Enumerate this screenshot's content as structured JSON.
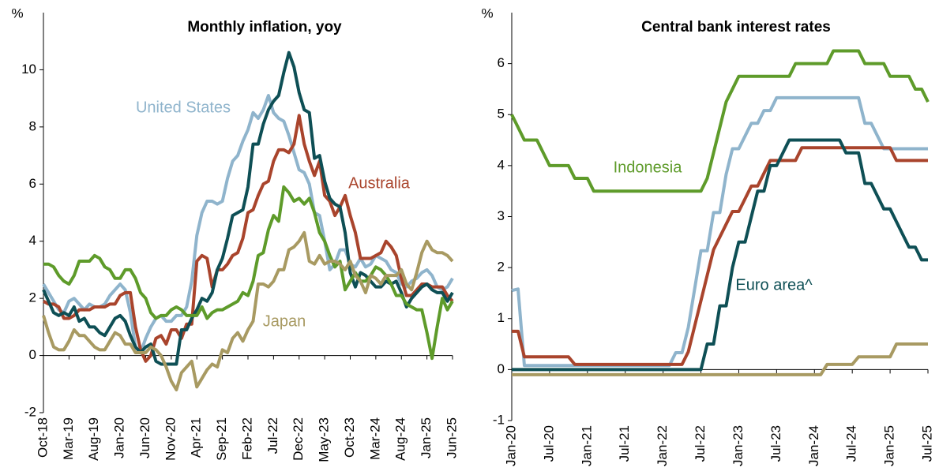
{
  "chart_data": [
    {
      "type": "line",
      "title": "Monthly inflation, yoy",
      "ylabel": "%",
      "categories": [
        "Oct-18",
        null,
        null,
        null,
        null,
        "Mar-19",
        null,
        null,
        null,
        null,
        "Aug-19",
        null,
        null,
        null,
        null,
        "Jan-20",
        null,
        null,
        null,
        null,
        "Jun-20",
        null,
        null,
        null,
        null,
        "Nov-20",
        null,
        null,
        null,
        null,
        "Apr-21",
        null,
        null,
        null,
        null,
        "Sep-21",
        null,
        null,
        null,
        null,
        "Feb-22",
        null,
        null,
        null,
        null,
        "Jul-22",
        null,
        null,
        null,
        null,
        "Dec-22",
        null,
        null,
        null,
        null,
        "May-23",
        null,
        null,
        null,
        null,
        "Oct-23",
        null,
        null,
        null,
        null,
        "Mar-24",
        null,
        null,
        null,
        null,
        "Aug-24",
        null,
        null,
        null,
        null,
        "Jan-25",
        null,
        null,
        null,
        null,
        "Jun-25"
      ],
      "ylim": [
        -2,
        12
      ],
      "yticks": [
        -2,
        0,
        2,
        4,
        6,
        8,
        10
      ],
      "series": [
        {
          "name": "United States",
          "color": "#8fb4cc",
          "values": [
            2.5,
            2.2,
            1.9,
            1.6,
            1.5,
            1.9,
            2.0,
            1.8,
            1.6,
            1.8,
            1.7,
            1.7,
            1.8,
            2.1,
            2.3,
            2.5,
            2.3,
            1.5,
            0.3,
            0.1,
            0.6,
            1.0,
            1.3,
            1.4,
            1.2,
            1.2,
            1.4,
            1.4,
            1.7,
            2.6,
            4.2,
            5.0,
            5.4,
            5.4,
            5.3,
            5.4,
            6.2,
            6.8,
            7.0,
            7.5,
            7.9,
            8.5,
            8.3,
            8.6,
            9.1,
            8.5,
            8.3,
            8.2,
            7.7,
            7.1,
            6.5,
            6.4,
            6.0,
            5.0,
            4.9,
            4.0,
            3.0,
            3.2,
            3.7,
            3.7,
            3.2,
            3.1,
            3.4,
            3.1,
            3.2,
            3.5,
            3.4,
            3.3,
            3.0,
            2.9,
            2.5,
            2.4,
            2.6,
            2.7,
            2.9,
            3.0,
            2.8,
            2.4,
            2.3,
            2.4,
            2.7
          ]
        },
        {
          "name": "Australia",
          "color": "#a9442c",
          "values": [
            1.9,
            1.8,
            1.8,
            1.7,
            1.3,
            1.3,
            1.4,
            1.6,
            1.6,
            1.6,
            1.7,
            1.7,
            1.7,
            1.8,
            1.8,
            2.1,
            2.2,
            2.2,
            1.0,
            0.2,
            -0.2,
            0.0,
            0.6,
            0.7,
            0.4,
            0.9,
            0.9,
            0.6,
            1.1,
            1.1,
            3.3,
            3.5,
            3.4,
            2.4,
            3.0,
            3.0,
            3.2,
            3.5,
            3.6,
            4.1,
            5.0,
            5.1,
            5.6,
            6.0,
            6.1,
            6.8,
            7.2,
            7.2,
            7.1,
            7.4,
            8.4,
            7.4,
            6.8,
            6.3,
            6.8,
            5.6,
            5.4,
            4.9,
            5.2,
            5.6,
            4.9,
            4.3,
            3.4,
            3.4,
            3.4,
            3.5,
            3.6,
            4.0,
            3.8,
            3.5,
            2.7,
            2.1,
            2.1,
            2.3,
            2.5,
            2.5,
            2.4,
            2.4,
            2.4,
            2.1,
            1.9
          ]
        },
        {
          "color": "#0e4f55",
          "values": [
            2.3,
            1.9,
            1.5,
            1.4,
            1.5,
            1.4,
            1.7,
            1.2,
            1.3,
            1.0,
            1.0,
            0.8,
            0.7,
            1.0,
            1.3,
            1.4,
            1.2,
            0.7,
            0.3,
            0.1,
            0.3,
            0.4,
            -0.2,
            -0.3,
            -0.3,
            -0.3,
            -0.3,
            0.9,
            0.9,
            1.3,
            1.6,
            2.0,
            1.9,
            2.2,
            3.0,
            3.4,
            4.1,
            4.9,
            5.0,
            5.1,
            5.9,
            7.4,
            7.4,
            8.1,
            8.6,
            8.9,
            9.1,
            9.9,
            10.6,
            10.1,
            9.2,
            8.6,
            8.5,
            6.9,
            7.0,
            6.1,
            5.5,
            5.3,
            5.2,
            4.3,
            2.9,
            2.4,
            2.9,
            2.8,
            2.6,
            2.4,
            2.4,
            2.6,
            2.5,
            2.6,
            2.2,
            1.7,
            2.0,
            2.2,
            2.4,
            2.5,
            2.3,
            2.2,
            2.2,
            1.9,
            2.2
          ]
        },
        {
          "color": "#5e9b2a",
          "values": [
            3.2,
            3.2,
            3.1,
            2.8,
            2.6,
            2.5,
            2.8,
            3.3,
            3.3,
            3.3,
            3.5,
            3.4,
            3.1,
            3.0,
            2.7,
            2.7,
            3.0,
            3.0,
            2.7,
            2.2,
            2.0,
            1.5,
            1.3,
            1.4,
            1.4,
            1.6,
            1.7,
            1.6,
            1.4,
            1.4,
            1.4,
            1.7,
            1.3,
            1.5,
            1.6,
            1.6,
            1.7,
            1.8,
            1.9,
            2.2,
            2.1,
            2.6,
            3.5,
            3.6,
            4.4,
            4.9,
            4.7,
            5.9,
            5.7,
            5.4,
            5.5,
            5.3,
            5.5,
            5.0,
            4.3,
            4.0,
            3.5,
            3.1,
            3.3,
            2.3,
            2.6,
            2.9,
            2.6,
            2.6,
            2.8,
            3.1,
            3.0,
            2.8,
            2.5,
            2.1,
            2.1,
            1.8,
            1.7,
            1.6,
            1.6,
            0.8,
            -0.1,
            1.0,
            2.0,
            1.6,
            1.9
          ]
        },
        {
          "name": "Japan",
          "color": "#a89a62",
          "values": [
            1.4,
            0.8,
            0.3,
            0.2,
            0.2,
            0.5,
            0.9,
            0.7,
            0.7,
            0.5,
            0.3,
            0.2,
            0.2,
            0.5,
            0.8,
            0.7,
            0.4,
            0.4,
            0.1,
            0.1,
            0.1,
            0.3,
            0.2,
            0.0,
            -0.4,
            -0.9,
            -1.2,
            -0.6,
            -0.4,
            -0.2,
            -1.1,
            -0.8,
            -0.5,
            -0.3,
            -0.4,
            0.2,
            0.1,
            0.6,
            0.8,
            0.5,
            0.9,
            1.2,
            2.5,
            2.5,
            2.4,
            2.6,
            3.0,
            3.0,
            3.7,
            3.8,
            4.0,
            4.3,
            3.3,
            3.2,
            3.5,
            3.2,
            3.3,
            3.3,
            3.2,
            3.0,
            3.3,
            2.8,
            2.6,
            2.2,
            2.8,
            2.7,
            2.5,
            2.8,
            2.8,
            2.8,
            3.0,
            2.5,
            2.3,
            2.9,
            3.6,
            4.0,
            3.7,
            3.6,
            3.6,
            3.5,
            3.3
          ]
        }
      ]
    },
    {
      "type": "line",
      "title": "Central bank interest rates",
      "ylabel": "%",
      "categories": [
        "Jan-20",
        null,
        null,
        null,
        null,
        null,
        "Jul-20",
        null,
        null,
        null,
        null,
        null,
        "Jan-21",
        null,
        null,
        null,
        null,
        null,
        "Jul-21",
        null,
        null,
        null,
        null,
        null,
        "Jan-22",
        null,
        null,
        null,
        null,
        null,
        "Jul-22",
        null,
        null,
        null,
        null,
        null,
        "Jan-23",
        null,
        null,
        null,
        null,
        null,
        "Jul-23",
        null,
        null,
        null,
        null,
        null,
        "Jan-24",
        null,
        null,
        null,
        null,
        null,
        "Jul-24",
        null,
        null,
        null,
        null,
        null,
        "Jan-25",
        null,
        null,
        null,
        null,
        null,
        "Jul-25"
      ],
      "ylim": [
        -1,
        7
      ],
      "yticks": [
        -1,
        0,
        1,
        2,
        3,
        4,
        5,
        6
      ],
      "series": [
        {
          "name": "Indonesia",
          "color": "#5e9b2a",
          "values": [
            5.0,
            4.75,
            4.5,
            4.5,
            4.5,
            4.25,
            4.0,
            4.0,
            4.0,
            4.0,
            3.75,
            3.75,
            3.75,
            3.5,
            3.5,
            3.5,
            3.5,
            3.5,
            3.5,
            3.5,
            3.5,
            3.5,
            3.5,
            3.5,
            3.5,
            3.5,
            3.5,
            3.5,
            3.5,
            3.5,
            3.5,
            3.75,
            4.25,
            4.75,
            5.25,
            5.5,
            5.75,
            5.75,
            5.75,
            5.75,
            5.75,
            5.75,
            5.75,
            5.75,
            5.75,
            6.0,
            6.0,
            6.0,
            6.0,
            6.0,
            6.0,
            6.25,
            6.25,
            6.25,
            6.25,
            6.25,
            6.0,
            6.0,
            6.0,
            6.0,
            5.75,
            5.75,
            5.75,
            5.75,
            5.5,
            5.5,
            5.25
          ]
        },
        {
          "color": "#8fb4cc",
          "values": [
            1.55,
            1.58,
            0.08,
            0.08,
            0.08,
            0.08,
            0.08,
            0.08,
            0.08,
            0.08,
            0.08,
            0.08,
            0.08,
            0.08,
            0.08,
            0.08,
            0.08,
            0.08,
            0.08,
            0.08,
            0.08,
            0.08,
            0.08,
            0.08,
            0.08,
            0.08,
            0.33,
            0.33,
            0.83,
            1.58,
            2.33,
            2.33,
            3.08,
            3.08,
            3.83,
            4.33,
            4.33,
            4.58,
            4.83,
            4.83,
            5.08,
            5.08,
            5.33,
            5.33,
            5.33,
            5.33,
            5.33,
            5.33,
            5.33,
            5.33,
            5.33,
            5.33,
            5.33,
            5.33,
            5.33,
            5.33,
            4.83,
            4.83,
            4.58,
            4.33,
            4.33,
            4.33,
            4.33,
            4.33,
            4.33,
            4.33,
            4.33
          ]
        },
        {
          "color": "#a9442c",
          "values": [
            0.75,
            0.75,
            0.25,
            0.25,
            0.25,
            0.25,
            0.25,
            0.25,
            0.25,
            0.25,
            0.1,
            0.1,
            0.1,
            0.1,
            0.1,
            0.1,
            0.1,
            0.1,
            0.1,
            0.1,
            0.1,
            0.1,
            0.1,
            0.1,
            0.1,
            0.1,
            0.1,
            0.1,
            0.35,
            0.85,
            1.35,
            1.85,
            2.35,
            2.6,
            2.85,
            3.1,
            3.1,
            3.35,
            3.6,
            3.6,
            3.85,
            4.1,
            4.1,
            4.1,
            4.1,
            4.1,
            4.35,
            4.35,
            4.35,
            4.35,
            4.35,
            4.35,
            4.35,
            4.35,
            4.35,
            4.35,
            4.35,
            4.35,
            4.35,
            4.35,
            4.35,
            4.1,
            4.1,
            4.1,
            4.1,
            4.1,
            4.1
          ]
        },
        {
          "name": "Euro area^",
          "color": "#0e4f55",
          "values": [
            0,
            0,
            0,
            0,
            0,
            0,
            0,
            0,
            0,
            0,
            0,
            0,
            0,
            0,
            0,
            0,
            0,
            0,
            0,
            0,
            0,
            0,
            0,
            0,
            0,
            0,
            0,
            0,
            0,
            0,
            0,
            0.5,
            0.5,
            1.25,
            1.25,
            2.0,
            2.5,
            2.5,
            3.0,
            3.5,
            3.5,
            4.0,
            4.0,
            4.25,
            4.5,
            4.5,
            4.5,
            4.5,
            4.5,
            4.5,
            4.5,
            4.5,
            4.5,
            4.25,
            4.25,
            4.25,
            3.65,
            3.65,
            3.4,
            3.15,
            3.15,
            2.9,
            2.65,
            2.4,
            2.4,
            2.15,
            2.15
          ]
        },
        {
          "color": "#a89a62",
          "values": [
            -0.1,
            -0.1,
            -0.1,
            -0.1,
            -0.1,
            -0.1,
            -0.1,
            -0.1,
            -0.1,
            -0.1,
            -0.1,
            -0.1,
            -0.1,
            -0.1,
            -0.1,
            -0.1,
            -0.1,
            -0.1,
            -0.1,
            -0.1,
            -0.1,
            -0.1,
            -0.1,
            -0.1,
            -0.1,
            -0.1,
            -0.1,
            -0.1,
            -0.1,
            -0.1,
            -0.1,
            -0.1,
            -0.1,
            -0.1,
            -0.1,
            -0.1,
            -0.1,
            -0.1,
            -0.1,
            -0.1,
            -0.1,
            -0.1,
            -0.1,
            -0.1,
            -0.1,
            -0.1,
            -0.1,
            -0.1,
            -0.1,
            -0.1,
            0.1,
            0.1,
            0.1,
            0.1,
            0.1,
            0.25,
            0.25,
            0.25,
            0.25,
            0.25,
            0.25,
            0.5,
            0.5,
            0.5,
            0.5,
            0.5,
            0.5
          ]
        }
      ]
    }
  ]
}
